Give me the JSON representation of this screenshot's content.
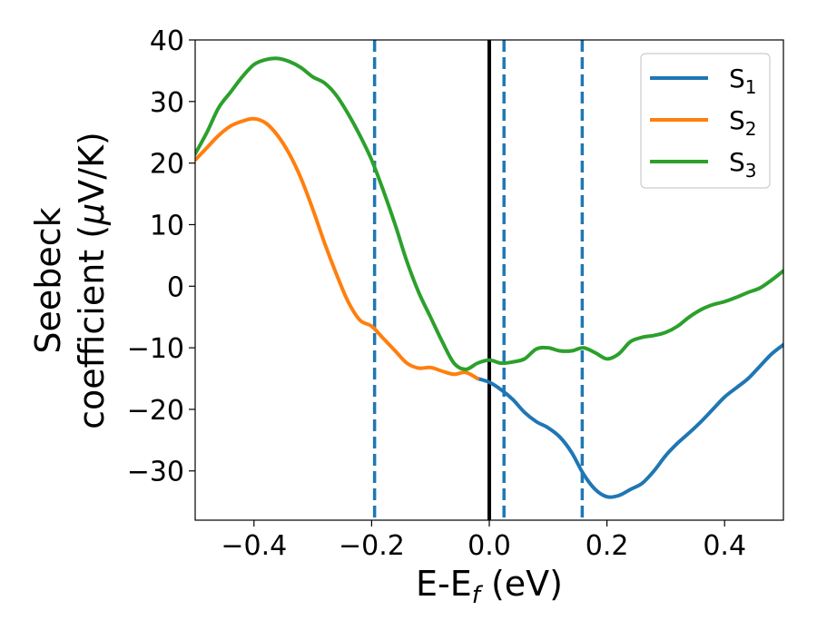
{
  "chart_data": {
    "type": "line",
    "xlabel": "E-E",
    "xlabel_subscript": "f",
    "xlabel_unit": " (eV)",
    "ylabel_line1": "Seebeck",
    "ylabel_line2": "coefficient  (",
    "ylabel_mu": "μ",
    "ylabel_unit": "V/K)",
    "xlim": [
      -0.5,
      0.5
    ],
    "ylim": [
      -38,
      40
    ],
    "xticks": [
      -0.4,
      -0.2,
      0.0,
      0.2,
      0.4
    ],
    "xtick_labels": [
      "−0.4",
      "−0.2",
      "0.0",
      "0.2",
      "0.4"
    ],
    "yticks": [
      -30,
      -20,
      -10,
      0,
      10,
      20,
      30,
      40
    ],
    "ytick_labels": [
      "−30",
      "−20",
      "−10",
      "0",
      "10",
      "20",
      "30",
      "40"
    ],
    "grid": false,
    "legend_position": "upper right",
    "series": [
      {
        "name": "S",
        "subscript": "1",
        "color": "#1f77b4",
        "points": [
          [
            -0.02,
            -15.0
          ],
          [
            0.0,
            -15.6
          ],
          [
            0.02,
            -16.8
          ],
          [
            0.04,
            -18.4
          ],
          [
            0.06,
            -20.5
          ],
          [
            0.08,
            -22.0
          ],
          [
            0.1,
            -23.0
          ],
          [
            0.12,
            -24.5
          ],
          [
            0.14,
            -27.0
          ],
          [
            0.16,
            -30.5
          ],
          [
            0.18,
            -33.0
          ],
          [
            0.2,
            -34.2
          ],
          [
            0.22,
            -34.0
          ],
          [
            0.24,
            -33.0
          ],
          [
            0.26,
            -32.0
          ],
          [
            0.28,
            -30.0
          ],
          [
            0.3,
            -27.5
          ],
          [
            0.32,
            -25.5
          ],
          [
            0.34,
            -23.8
          ],
          [
            0.36,
            -22.0
          ],
          [
            0.38,
            -20.0
          ],
          [
            0.4,
            -18.0
          ],
          [
            0.42,
            -16.5
          ],
          [
            0.44,
            -15.0
          ],
          [
            0.46,
            -13.0
          ],
          [
            0.48,
            -11.0
          ],
          [
            0.5,
            -9.5
          ]
        ]
      },
      {
        "name": "S",
        "subscript": "2",
        "color": "#ff7f0e",
        "points": [
          [
            -0.5,
            20.5
          ],
          [
            -0.48,
            22.5
          ],
          [
            -0.46,
            24.5
          ],
          [
            -0.44,
            26.0
          ],
          [
            -0.42,
            26.8
          ],
          [
            -0.4,
            27.2
          ],
          [
            -0.38,
            26.5
          ],
          [
            -0.36,
            24.5
          ],
          [
            -0.34,
            21.5
          ],
          [
            -0.32,
            17.5
          ],
          [
            -0.3,
            12.5
          ],
          [
            -0.28,
            7.0
          ],
          [
            -0.26,
            2.0
          ],
          [
            -0.24,
            -2.5
          ],
          [
            -0.22,
            -5.5
          ],
          [
            -0.2,
            -6.5
          ],
          [
            -0.18,
            -8.5
          ],
          [
            -0.16,
            -10.5
          ],
          [
            -0.14,
            -12.5
          ],
          [
            -0.12,
            -13.3
          ],
          [
            -0.1,
            -13.2
          ],
          [
            -0.08,
            -13.8
          ],
          [
            -0.06,
            -14.3
          ],
          [
            -0.04,
            -14.0
          ],
          [
            -0.02,
            -15.0
          ]
        ]
      },
      {
        "name": "S",
        "subscript": "3",
        "color": "#2ca02c",
        "points": [
          [
            -0.5,
            21.5
          ],
          [
            -0.48,
            25.0
          ],
          [
            -0.46,
            29.0
          ],
          [
            -0.44,
            31.5
          ],
          [
            -0.42,
            34.0
          ],
          [
            -0.4,
            36.0
          ],
          [
            -0.38,
            36.8
          ],
          [
            -0.36,
            37.0
          ],
          [
            -0.34,
            36.5
          ],
          [
            -0.32,
            35.5
          ],
          [
            -0.3,
            34.0
          ],
          [
            -0.28,
            33.0
          ],
          [
            -0.26,
            31.0
          ],
          [
            -0.24,
            28.0
          ],
          [
            -0.22,
            24.5
          ],
          [
            -0.2,
            20.5
          ],
          [
            -0.18,
            15.5
          ],
          [
            -0.16,
            10.0
          ],
          [
            -0.14,
            4.0
          ],
          [
            -0.12,
            -1.0
          ],
          [
            -0.1,
            -5.0
          ],
          [
            -0.08,
            -9.0
          ],
          [
            -0.06,
            -12.5
          ],
          [
            -0.04,
            -13.5
          ],
          [
            -0.02,
            -12.5
          ],
          [
            0.0,
            -12.0
          ],
          [
            0.02,
            -12.5
          ],
          [
            0.04,
            -12.3
          ],
          [
            0.06,
            -11.8
          ],
          [
            0.08,
            -10.2
          ],
          [
            0.1,
            -10.0
          ],
          [
            0.12,
            -10.5
          ],
          [
            0.14,
            -10.5
          ],
          [
            0.16,
            -10.0
          ],
          [
            0.18,
            -10.8
          ],
          [
            0.2,
            -11.8
          ],
          [
            0.22,
            -11.0
          ],
          [
            0.24,
            -9.0
          ],
          [
            0.26,
            -8.3
          ],
          [
            0.28,
            -8.0
          ],
          [
            0.3,
            -7.5
          ],
          [
            0.32,
            -6.5
          ],
          [
            0.34,
            -5.0
          ],
          [
            0.36,
            -3.8
          ],
          [
            0.38,
            -3.0
          ],
          [
            0.4,
            -2.5
          ],
          [
            0.42,
            -1.8
          ],
          [
            0.44,
            -1.0
          ],
          [
            0.46,
            -0.3
          ],
          [
            0.48,
            1.0
          ],
          [
            0.5,
            2.5
          ]
        ]
      }
    ],
    "reference_lines": [
      {
        "x": 0.0,
        "style": "solid",
        "color": "#000000"
      },
      {
        "x": -0.195,
        "style": "dashed",
        "color": "#1f77b4"
      },
      {
        "x": 0.025,
        "style": "dashed",
        "color": "#1f77b4"
      },
      {
        "x": 0.158,
        "style": "dashed",
        "color": "#1f77b4"
      }
    ]
  }
}
